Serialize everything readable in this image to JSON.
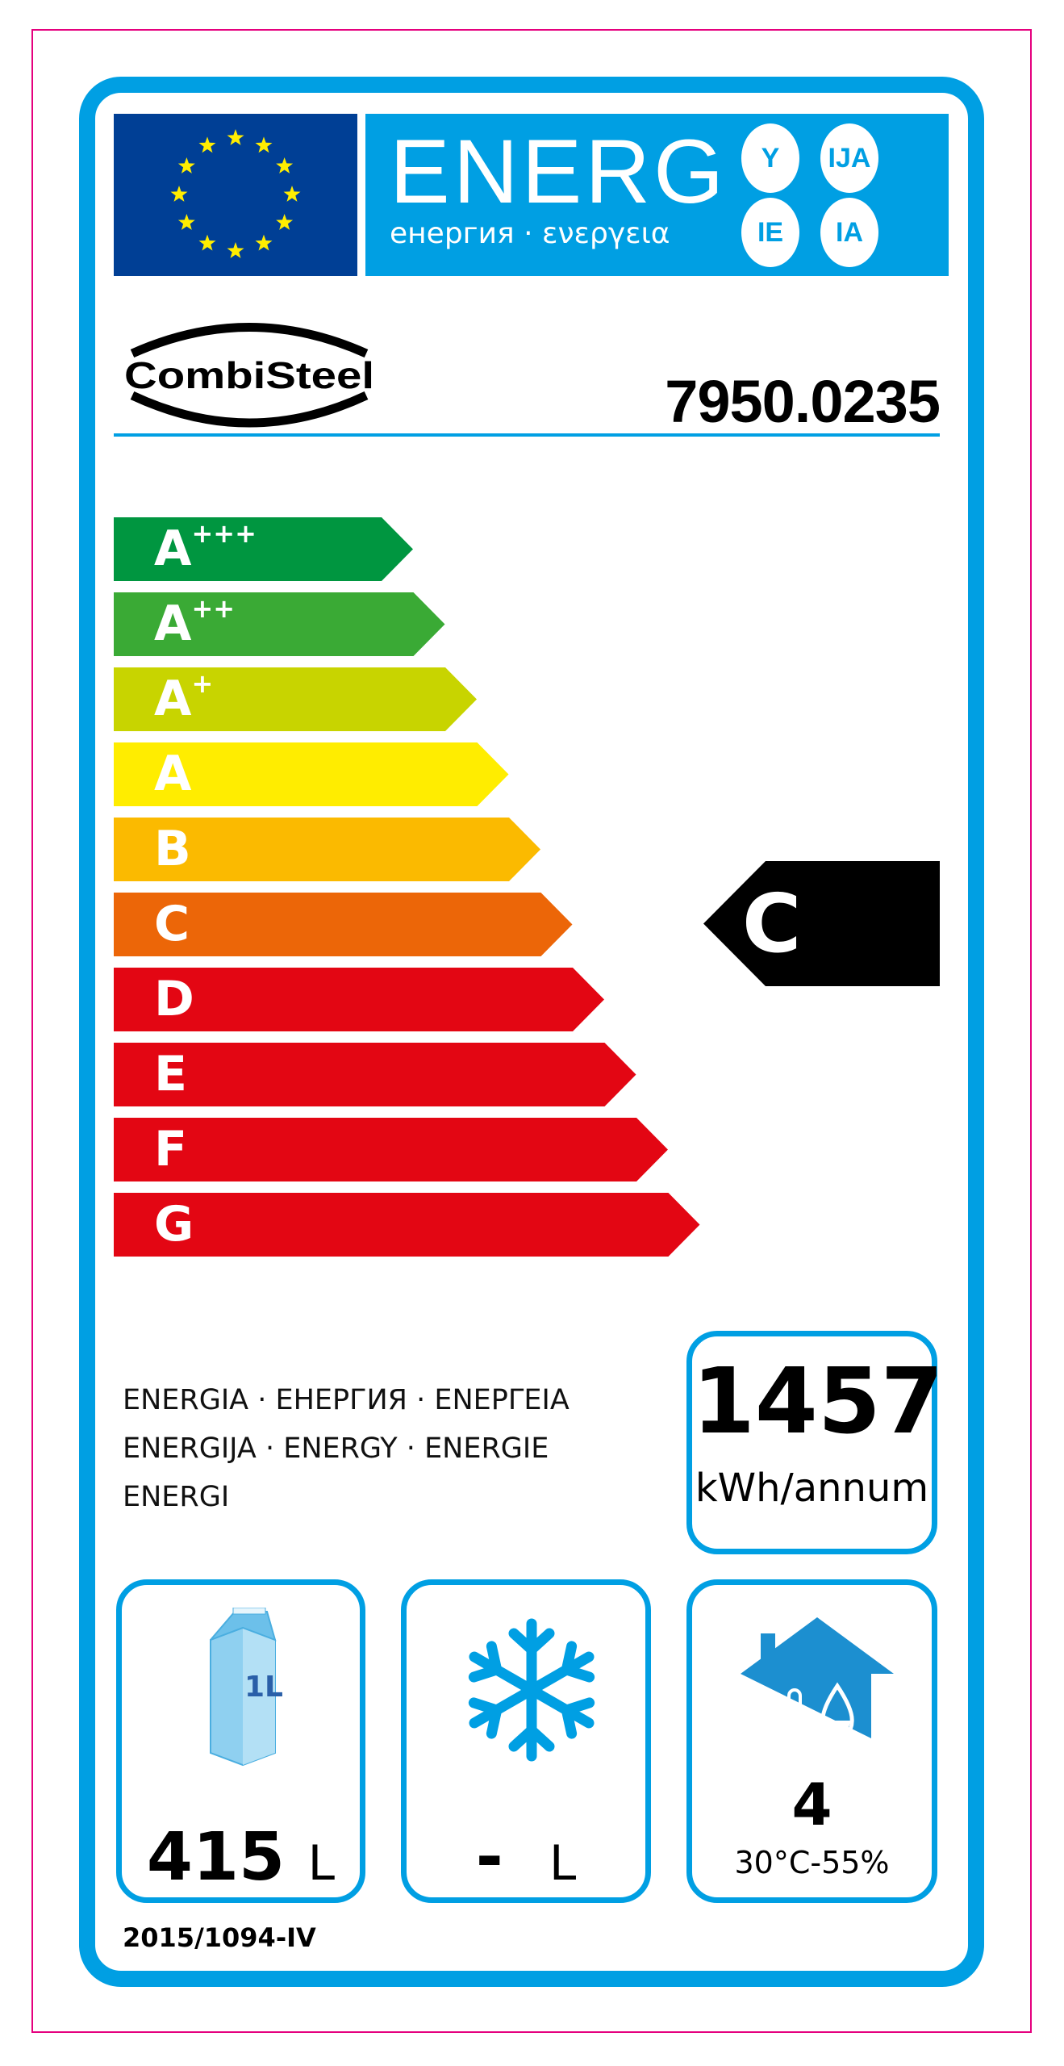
{
  "header": {
    "energy_word": "ENERG",
    "energy_suffixes": [
      "Y",
      "IJA",
      "IE",
      "IA"
    ],
    "energy_subtitle": "енергия · ενεργεια",
    "flag": "eu-flag"
  },
  "supplier": {
    "brand": "CombiSteel",
    "model": "7950.0235"
  },
  "scale": {
    "classes": [
      {
        "letter": "A",
        "sup": "+++",
        "color": "#009640"
      },
      {
        "letter": "A",
        "sup": "++",
        "color": "#3aaa35"
      },
      {
        "letter": "A",
        "sup": "+",
        "color": "#c8d400"
      },
      {
        "letter": "A",
        "sup": "",
        "color": "#ffed00"
      },
      {
        "letter": "B",
        "sup": "",
        "color": "#fbba00"
      },
      {
        "letter": "C",
        "sup": "",
        "color": "#ec6608"
      },
      {
        "letter": "D",
        "sup": "",
        "color": "#e30613"
      },
      {
        "letter": "E",
        "sup": "",
        "color": "#e30613"
      },
      {
        "letter": "F",
        "sup": "",
        "color": "#e30613"
      },
      {
        "letter": "G",
        "sup": "",
        "color": "#e30613"
      }
    ],
    "rating": "C"
  },
  "energy_text": [
    "ENERGIA · ЕНЕРГИЯ · ΕΝΕΡΓΕΙΑ",
    "ENERGIJA · ENERGY · ENERGIE",
    "ENERGI"
  ],
  "consumption": {
    "value": "1457",
    "unit": "kWh/annum"
  },
  "chilled": {
    "value": "415",
    "unit": "L",
    "icon": "milk-carton-icon",
    "carton_label": "1L"
  },
  "frozen": {
    "value": "-",
    "unit": "L",
    "icon": "snowflake-icon"
  },
  "climate": {
    "value": "4",
    "conditions": "30°C-55%",
    "icon": "house-climate-icon"
  },
  "regulation": "2015/1094-IV",
  "colors": {
    "frame": "#009fe3",
    "flag": "#003f95",
    "stars": "#ffed00",
    "trim": "#e5007e"
  }
}
